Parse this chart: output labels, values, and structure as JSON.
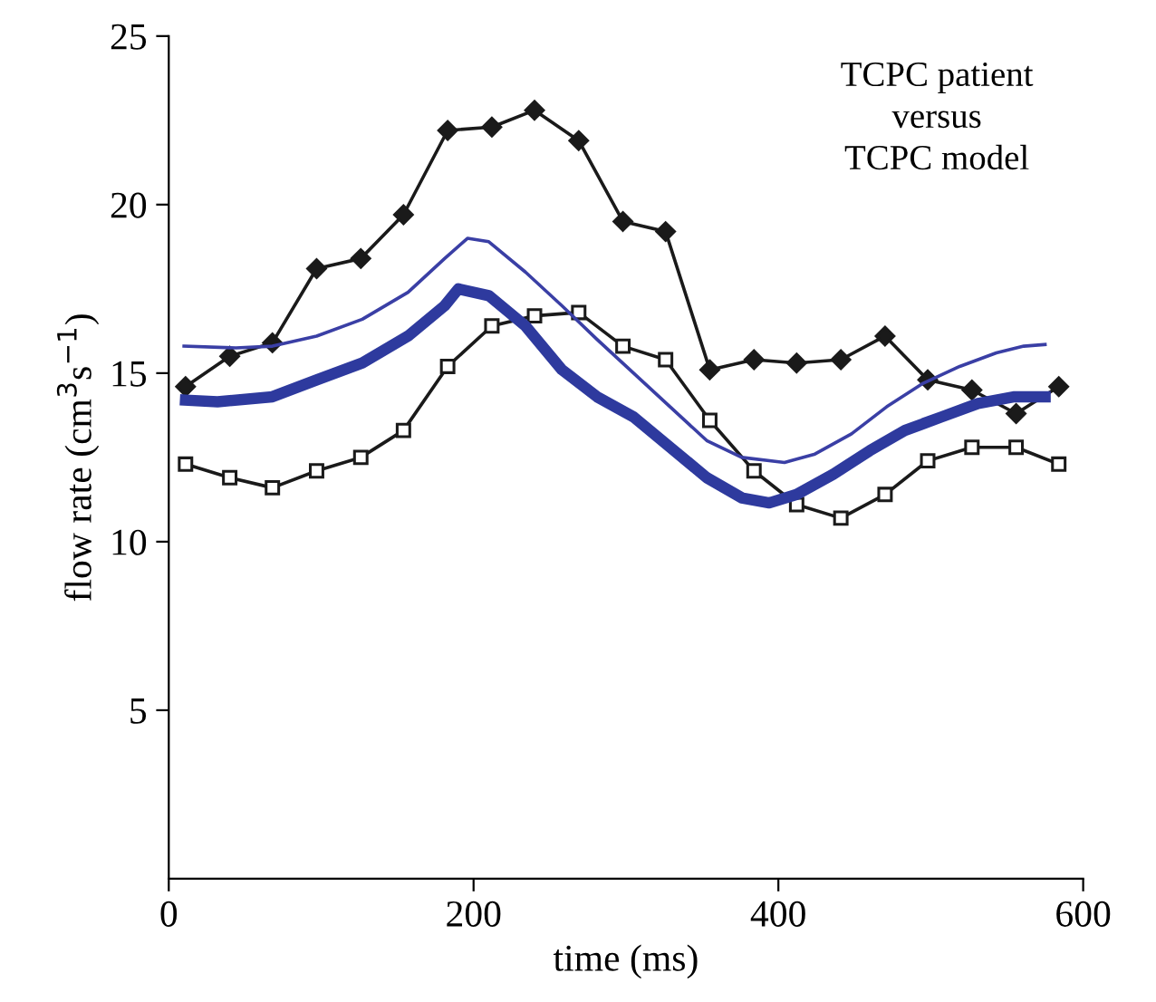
{
  "chart_data": {
    "type": "line",
    "xlabel": "time (ms)",
    "ylabel": "flow rate (cm$^{3}$s$^{−1}$)",
    "xlim": [
      0,
      600
    ],
    "xticks": [
      0,
      200,
      400,
      600
    ],
    "ylim": [
      0,
      25
    ],
    "yticks": [
      5,
      10,
      15,
      20,
      25
    ],
    "grid": false,
    "legend": false,
    "annotations": [
      "TCPC patient\nversus\nTCPC model"
    ],
    "series": [
      {
        "color": "#1a1a1a",
        "marker": "diamond",
        "x": [
          11,
          40,
          68,
          97,
          126,
          154,
          183,
          212,
          240,
          269,
          298,
          326,
          355,
          384,
          412,
          441,
          470,
          498,
          527,
          556,
          584
        ],
        "values": [
          14.6,
          15.5,
          15.9,
          18.1,
          18.4,
          19.7,
          22.2,
          22.3,
          22.8,
          21.9,
          19.5,
          19.2,
          15.1,
          15.4,
          15.3,
          15.4,
          16.1,
          14.8,
          14.5,
          13.8,
          14.6
        ]
      },
      {
        "color": "#1a1a1a",
        "marker": "square",
        "x": [
          11,
          40,
          68,
          97,
          126,
          154,
          183,
          212,
          240,
          269,
          298,
          326,
          355,
          384,
          412,
          441,
          470,
          498,
          527,
          556,
          584
        ],
        "values": [
          12.3,
          11.9,
          11.6,
          12.1,
          12.5,
          13.3,
          15.2,
          16.4,
          16.7,
          16.8,
          15.8,
          15.4,
          13.6,
          12.1,
          11.1,
          10.7,
          11.4,
          12.4,
          12.8,
          12.8,
          12.3
        ]
      },
      {
        "color": "#3a3fa5",
        "marker": "none",
        "x": [
          10,
          44,
          68,
          97,
          127,
          157,
          181,
          196,
          210,
          234,
          258,
          281,
          305,
          329,
          353,
          376,
          404,
          424,
          448,
          471,
          495,
          519,
          543,
          561,
          575
        ],
        "values": [
          15.8,
          15.75,
          15.8,
          16.1,
          16.6,
          17.4,
          18.4,
          19.0,
          18.9,
          18.0,
          17.0,
          16.0,
          15.0,
          14.0,
          13.0,
          12.5,
          12.35,
          12.6,
          13.2,
          14.0,
          14.7,
          15.2,
          15.6,
          15.8,
          15.85
        ]
      },
      {
        "color": "#2e3a9e",
        "marker": "none",
        "x": [
          11,
          32,
          68,
          97,
          127,
          157,
          181,
          190,
          210,
          234,
          258,
          281,
          305,
          329,
          353,
          376,
          394,
          412,
          436,
          460,
          483,
          507,
          531,
          555,
          575
        ],
        "values": [
          14.2,
          14.15,
          14.3,
          14.8,
          15.3,
          16.1,
          17.0,
          17.5,
          17.3,
          16.4,
          15.1,
          14.3,
          13.7,
          12.8,
          11.9,
          11.3,
          11.15,
          11.4,
          12.0,
          12.7,
          13.3,
          13.7,
          14.1,
          14.3,
          14.3
        ]
      }
    ]
  }
}
